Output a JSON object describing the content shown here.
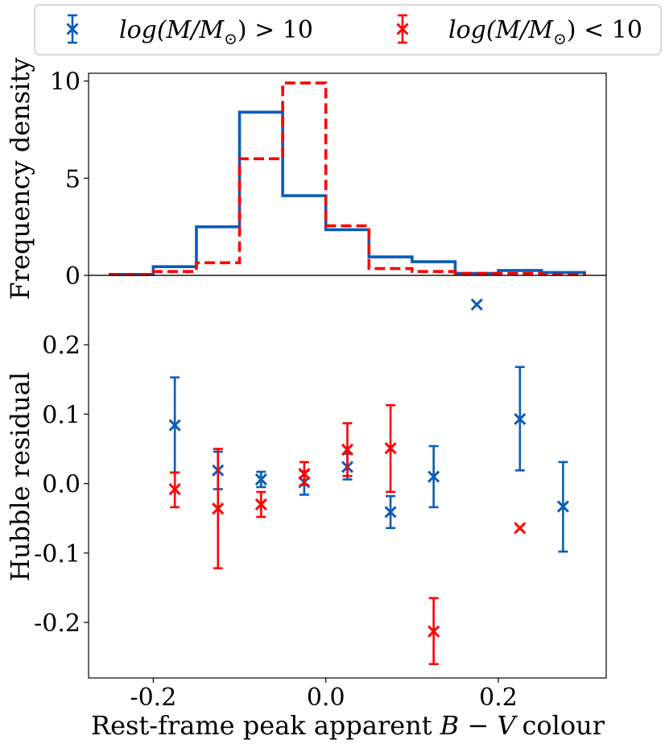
{
  "colors": {
    "blue": "#0a5cb6",
    "red": "#ff0000",
    "axis": "#000000"
  },
  "chart_data": [
    {
      "type": "histogram",
      "panel": "top",
      "ylabel": "Frequency density",
      "xlim": [
        -0.275,
        0.325
      ],
      "ylim": [
        0,
        10.4
      ],
      "yticks": [
        0,
        5,
        10
      ],
      "ytick_labels": [
        "0",
        "5",
        "10"
      ],
      "bin_edges": [
        -0.25,
        -0.2,
        -0.15,
        -0.1,
        -0.05,
        0.0,
        0.05,
        0.1,
        0.15,
        0.2,
        0.25,
        0.3
      ],
      "series": [
        {
          "name": "log(M/M☉) > 10",
          "color": "#0a5cb6",
          "style": "solid",
          "values": [
            0.05,
            0.45,
            2.5,
            8.4,
            4.1,
            2.35,
            0.95,
            0.7,
            0.1,
            0.25,
            0.15
          ]
        },
        {
          "name": "log(M/M☉) < 10",
          "color": "#ff0000",
          "style": "dashed",
          "values": [
            0.05,
            0.2,
            0.65,
            6.0,
            9.9,
            2.55,
            0.35,
            0.2,
            0.1,
            0.1,
            0.05
          ]
        }
      ]
    },
    {
      "type": "errorbar",
      "panel": "bottom",
      "xlabel": "Rest-frame peak apparent",
      "xlabel_math": "B − V",
      "xlabel_suffix": "colour",
      "ylabel": "Hubble residual",
      "xlim": [
        -0.275,
        0.325
      ],
      "ylim": [
        -0.28,
        0.3
      ],
      "xticks": [
        -0.2,
        0.0,
        0.2
      ],
      "xtick_labels": [
        "-0.2",
        "0.0",
        "0.2"
      ],
      "yticks": [
        -0.2,
        -0.1,
        0.0,
        0.1,
        0.2
      ],
      "ytick_labels": [
        "-0.2",
        "-0.1",
        "0.0",
        "0.1",
        "0.2"
      ],
      "series": [
        {
          "name": "log(M/M☉) > 10",
          "color": "#0a5cb6",
          "points": [
            {
              "x": -0.175,
              "y": 0.084,
              "lo": 0.016,
              "hi": 0.153
            },
            {
              "x": -0.125,
              "y": 0.019,
              "lo": -0.008,
              "hi": 0.046
            },
            {
              "x": -0.075,
              "y": 0.006,
              "lo": -0.005,
              "hi": 0.017
            },
            {
              "x": -0.025,
              "y": 0.002,
              "lo": -0.016,
              "hi": 0.018
            },
            {
              "x": 0.025,
              "y": 0.024,
              "lo": 0.006,
              "hi": 0.043
            },
            {
              "x": 0.075,
              "y": -0.041,
              "lo": -0.064,
              "hi": -0.018
            },
            {
              "x": 0.125,
              "y": 0.01,
              "lo": -0.034,
              "hi": 0.054
            },
            {
              "x": 0.175,
              "y": 0.258,
              "lo": null,
              "hi": null
            },
            {
              "x": 0.225,
              "y": 0.093,
              "lo": 0.019,
              "hi": 0.168
            },
            {
              "x": 0.275,
              "y": -0.033,
              "lo": -0.098,
              "hi": 0.031
            }
          ]
        },
        {
          "name": "log(M/M☉) < 10",
          "color": "#ff0000",
          "points": [
            {
              "x": -0.175,
              "y": -0.008,
              "lo": -0.034,
              "hi": 0.016
            },
            {
              "x": -0.125,
              "y": -0.036,
              "lo": -0.122,
              "hi": 0.05
            },
            {
              "x": -0.075,
              "y": -0.03,
              "lo": -0.048,
              "hi": -0.012
            },
            {
              "x": -0.025,
              "y": 0.014,
              "lo": -0.002,
              "hi": 0.031
            },
            {
              "x": 0.025,
              "y": 0.049,
              "lo": 0.011,
              "hi": 0.087
            },
            {
              "x": 0.075,
              "y": 0.051,
              "lo": -0.012,
              "hi": 0.113
            },
            {
              "x": 0.125,
              "y": -0.213,
              "lo": -0.26,
              "hi": -0.165
            },
            {
              "x": 0.225,
              "y": -0.064,
              "lo": null,
              "hi": null
            }
          ]
        }
      ]
    }
  ],
  "legend": {
    "placement": "top",
    "entries": [
      {
        "base": "log(M/M",
        "sub": "⊙",
        "tail": ") > 10",
        "color": "#0a5cb6"
      },
      {
        "base": "log(M/M",
        "sub": "⊙",
        "tail": ") < 10",
        "color": "#ff0000"
      }
    ]
  }
}
